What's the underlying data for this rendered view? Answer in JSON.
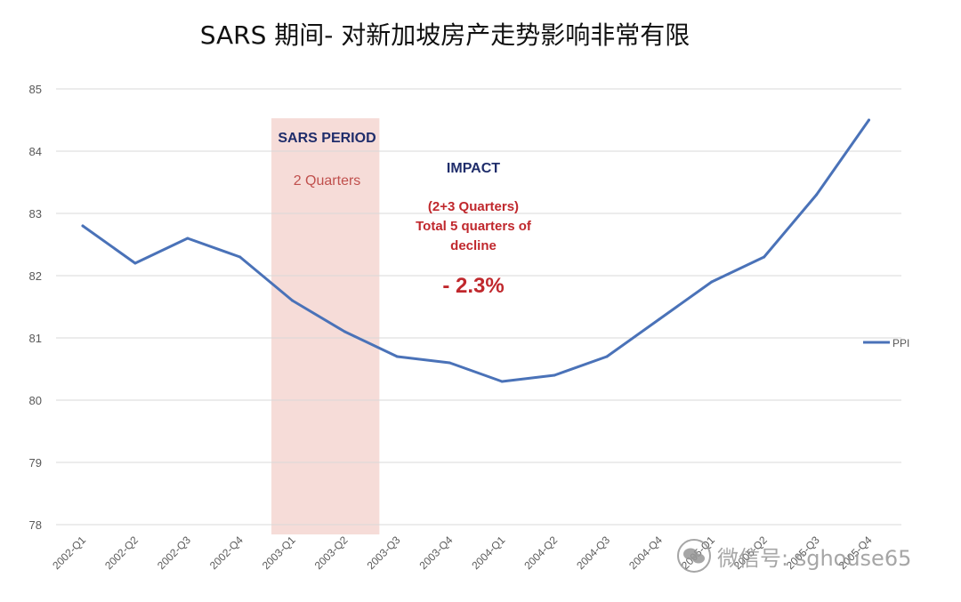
{
  "title": "SARS 期间- 对新加坡房产走势影响非常有限",
  "annotations": {
    "sars_title": "SARS PERIOD",
    "sars_sub": "2 Quarters",
    "impact_title": "IMPACT",
    "impact_line1": "(2+3 Quarters)",
    "impact_line2": "Total 5 quarters of",
    "impact_line3": "decline",
    "impact_value": "- 2.3%"
  },
  "watermark": {
    "text": "微信号: sghouse65",
    "icon": "wechat-icon"
  },
  "colors": {
    "line": "#4a72b8",
    "shade": "#f6dcd8",
    "grid": "#d9d9d9",
    "annotation_blue": "#1f2d6b",
    "annotation_red": "#c0282d"
  },
  "chart_data": {
    "type": "line",
    "title": "SARS 期间- 对新加坡房产走势影响非常有限",
    "categories": [
      "2002-Q1",
      "2002-Q2",
      "2002-Q3",
      "2002-Q4",
      "2003-Q1",
      "2003-Q2",
      "2003-Q3",
      "2003-Q4",
      "2004-Q1",
      "2004-Q2",
      "2004-Q3",
      "2004-Q4",
      "2005-Q1",
      "2005-Q2",
      "2005-Q3",
      "2005-Q4"
    ],
    "series": [
      {
        "name": "PPI",
        "values": [
          82.8,
          82.2,
          82.6,
          82.3,
          81.6,
          81.1,
          80.7,
          80.6,
          80.3,
          80.4,
          80.7,
          81.3,
          81.9,
          82.3,
          83.3,
          84.5
        ]
      }
    ],
    "ylim": [
      78,
      85
    ],
    "yticks": [
      78,
      79,
      80,
      81,
      82,
      83,
      84,
      85
    ],
    "grid": true,
    "legend": "right",
    "shaded_region": {
      "label": "SARS PERIOD",
      "from": "2003-Q1",
      "to": "2003-Q2"
    }
  }
}
